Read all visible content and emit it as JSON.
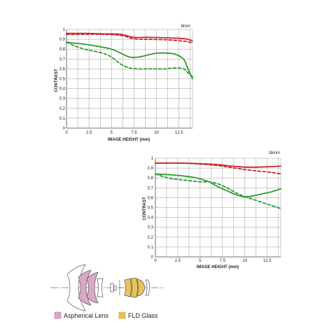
{
  "colors": {
    "red": "#c8282d",
    "green": "#2e9a2e",
    "grid": "#9a9a9a",
    "aspherical": "#d9a7c7",
    "fld": "#e8c25a"
  },
  "chart_data": [
    {
      "type": "line",
      "title": "8mm",
      "xlabel": "IMAGE HEIGHT (mm)",
      "ylabel": "CONTRAST",
      "xlim": [
        0,
        14
      ],
      "ylim": [
        0,
        1
      ],
      "xticks": [
        "0",
        "2.5",
        "5",
        "7.5",
        "10",
        "12.5"
      ],
      "yticks": [
        "0",
        "0.1",
        "0.2",
        "0.3",
        "0.4",
        "0.5",
        "0.6",
        "0.7",
        "0.8",
        "0.9",
        "1"
      ],
      "series": [
        {
          "color": "red",
          "dash": false,
          "points": [
            [
              0,
              0.96
            ],
            [
              2,
              0.96
            ],
            [
              4,
              0.955
            ],
            [
              6,
              0.95
            ],
            [
              7.5,
              0.92
            ],
            [
              9,
              0.92
            ],
            [
              11,
              0.915
            ],
            [
              12.5,
              0.91
            ],
            [
              13.5,
              0.9
            ],
            [
              14,
              0.88
            ]
          ]
        },
        {
          "color": "red",
          "dash": true,
          "points": [
            [
              0,
              0.95
            ],
            [
              2,
              0.95
            ],
            [
              4,
              0.95
            ],
            [
              6,
              0.94
            ],
            [
              7.5,
              0.905
            ],
            [
              9,
              0.9
            ],
            [
              11,
              0.895
            ],
            [
              12.5,
              0.885
            ],
            [
              13.5,
              0.875
            ],
            [
              14,
              0.86
            ]
          ]
        },
        {
          "color": "green",
          "dash": false,
          "points": [
            [
              0,
              0.87
            ],
            [
              2,
              0.85
            ],
            [
              4,
              0.82
            ],
            [
              5,
              0.8
            ],
            [
              6,
              0.76
            ],
            [
              7,
              0.72
            ],
            [
              8,
              0.72
            ],
            [
              9,
              0.74
            ],
            [
              10,
              0.76
            ],
            [
              11,
              0.76
            ],
            [
              12,
              0.75
            ],
            [
              13,
              0.7
            ],
            [
              13.5,
              0.6
            ],
            [
              14,
              0.5
            ]
          ]
        },
        {
          "color": "green",
          "dash": true,
          "points": [
            [
              0,
              0.87
            ],
            [
              1,
              0.83
            ],
            [
              2,
              0.8
            ],
            [
              3,
              0.78
            ],
            [
              4,
              0.76
            ],
            [
              5,
              0.72
            ],
            [
              6,
              0.65
            ],
            [
              7,
              0.61
            ],
            [
              8,
              0.6
            ],
            [
              9,
              0.6
            ],
            [
              10,
              0.6
            ],
            [
              11,
              0.6
            ],
            [
              12,
              0.61
            ],
            [
              13,
              0.6
            ],
            [
              13.5,
              0.56
            ],
            [
              14,
              0.52
            ]
          ]
        }
      ]
    },
    {
      "type": "line",
      "title": "16mm",
      "xlabel": "IMAGE HEIGHT (mm)",
      "ylabel": "CONTRAST",
      "xlim": [
        0,
        14
      ],
      "ylim": [
        0,
        1
      ],
      "xticks": [
        "0",
        "2.5",
        "5",
        "7.5",
        "10",
        "12.5"
      ],
      "yticks": [
        "0",
        "0.1",
        "0.2",
        "0.3",
        "0.4",
        "0.5",
        "0.6",
        "0.7",
        "0.8",
        "0.9",
        "1"
      ],
      "series": [
        {
          "color": "red",
          "dash": false,
          "points": [
            [
              0,
              0.95
            ],
            [
              3,
              0.95
            ],
            [
              5,
              0.945
            ],
            [
              7,
              0.935
            ],
            [
              8.5,
              0.92
            ],
            [
              10,
              0.91
            ],
            [
              11.5,
              0.91
            ],
            [
              13,
              0.915
            ],
            [
              14,
              0.92
            ]
          ]
        },
        {
          "color": "red",
          "dash": true,
          "points": [
            [
              0,
              0.95
            ],
            [
              3,
              0.95
            ],
            [
              5,
              0.94
            ],
            [
              7,
              0.925
            ],
            [
              8.5,
              0.905
            ],
            [
              10,
              0.885
            ],
            [
              11.5,
              0.87
            ],
            [
              13,
              0.855
            ],
            [
              14,
              0.84
            ]
          ]
        },
        {
          "color": "green",
          "dash": false,
          "points": [
            [
              0,
              0.84
            ],
            [
              2,
              0.83
            ],
            [
              4,
              0.81
            ],
            [
              5,
              0.79
            ],
            [
              6,
              0.76
            ],
            [
              7,
              0.71
            ],
            [
              8,
              0.67
            ],
            [
              9,
              0.63
            ],
            [
              10,
              0.61
            ],
            [
              11,
              0.62
            ],
            [
              12,
              0.64
            ],
            [
              13,
              0.66
            ],
            [
              14,
              0.69
            ]
          ]
        },
        {
          "color": "green",
          "dash": true,
          "points": [
            [
              0,
              0.84
            ],
            [
              1,
              0.81
            ],
            [
              2,
              0.79
            ],
            [
              3,
              0.78
            ],
            [
              4,
              0.77
            ],
            [
              5,
              0.76
            ],
            [
              6,
              0.76
            ],
            [
              7,
              0.74
            ],
            [
              8,
              0.7
            ],
            [
              9,
              0.65
            ],
            [
              10,
              0.61
            ],
            [
              11,
              0.58
            ],
            [
              12,
              0.55
            ],
            [
              13,
              0.52
            ],
            [
              14,
              0.49
            ]
          ]
        }
      ]
    }
  ],
  "legend": {
    "aspherical": "Aspherical Lens",
    "fld": "FLD Glass"
  }
}
